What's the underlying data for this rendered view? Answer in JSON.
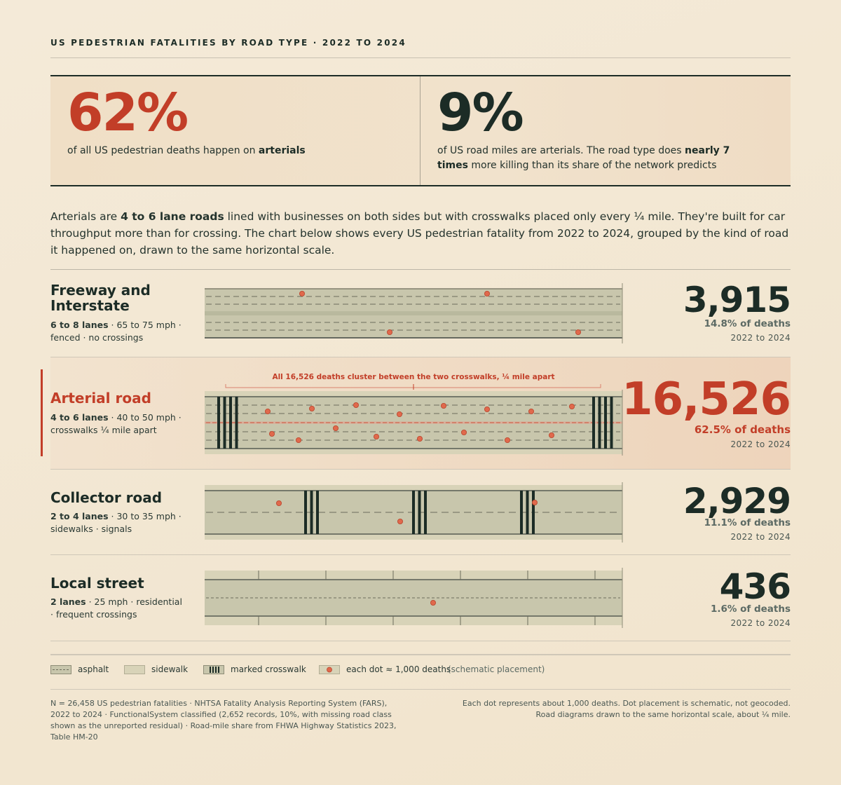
{
  "kicker": "US PEDESTRIAN FATALITIES BY ROAD TYPE · 2022 TO 2024",
  "stats": {
    "left": {
      "value": "62%",
      "text_pre": "of all US pedestrian deaths happen on ",
      "text_bold": "arterials"
    },
    "right": {
      "value": "9%",
      "text_pre": "of US road miles are arterials. The road type does ",
      "text_bold": "nearly 7 times",
      "text_post": " more killing than its share of the network predicts"
    }
  },
  "intro": {
    "pre": "Arterials are ",
    "bold": "4 to 6 lane roads",
    "post": " lined with businesses on both sides but with crosswalks placed only every ¼ mile. They're built for car throughput more than for crossing. The chart below shows every US pedestrian fatality from 2022 to 2024, grouped by the kind of road it happened on, drawn to the same horizontal scale."
  },
  "chart_data": {
    "type": "bar",
    "title": "US PEDESTRIAN FATALITIES BY ROAD TYPE · 2022 TO 2024",
    "categories": [
      "Freeway and Interstate",
      "Arterial road",
      "Collector road",
      "Local street"
    ],
    "values": [
      3915,
      16526,
      2929,
      436
    ],
    "shares_pct": [
      14.8,
      62.5,
      11.1,
      1.6
    ],
    "unit_per_dot": 1000,
    "dots_per_category": [
      4,
      16,
      3,
      1
    ]
  },
  "rows": [
    {
      "name": "Freeway and Interstate",
      "meta_bold": "6 to 8 lanes",
      "meta_rest": " · 65 to 75 mph · fenced · no crossings",
      "count": "3,915",
      "share": "14.8% of deaths",
      "period": "2022 to 2024"
    },
    {
      "name": "Arterial road",
      "meta_bold": "4 to 6 lanes",
      "meta_rest": " · 40 to 50 mph · crosswalks ¼ mile apart",
      "count": "16,526",
      "share": "62.5% of deaths",
      "period": "2022 to 2024",
      "annotation": "All 16,526 deaths cluster between the two crosswalks, ¼ mile apart"
    },
    {
      "name": "Collector road",
      "meta_bold": "2 to 4 lanes",
      "meta_rest": " · 30 to 35 mph · sidewalks · signals",
      "count": "2,929",
      "share": "11.1% of deaths",
      "period": "2022 to 2024"
    },
    {
      "name": "Local street",
      "meta_bold": "2 lanes",
      "meta_rest": " · 25 mph · residential · frequent crossings",
      "count": "436",
      "share": "1.6% of deaths",
      "period": "2022 to 2024"
    }
  ],
  "legend": {
    "asphalt": "asphalt",
    "sidewalk": "sidewalk",
    "crosswalk": "marked crosswalk",
    "dot": "each dot ≈ 1,000 deaths",
    "note": "(schematic placement)"
  },
  "footnotes": {
    "left": "N = 26,458 US pedestrian fatalities · NHTSA Fatality Analysis Reporting System (FARS), 2022 to 2024 · FunctionalSystem classified (2,652 records, 10%, with missing road class shown as the unreported residual) · Road-mile share from FHWA Highway Statistics 2023, Table HM-20",
    "right": "Each dot represents about 1,000 deaths. Dot placement is schematic, not geocoded. Road diagrams drawn to the same horizontal scale, about ¼ mile."
  },
  "colors": {
    "accent": "#c23e28",
    "ink": "#1c2c26",
    "asphalt": "#c8c6ac",
    "sidewalk": "#d8d3b8",
    "dot": "#e0694c"
  }
}
